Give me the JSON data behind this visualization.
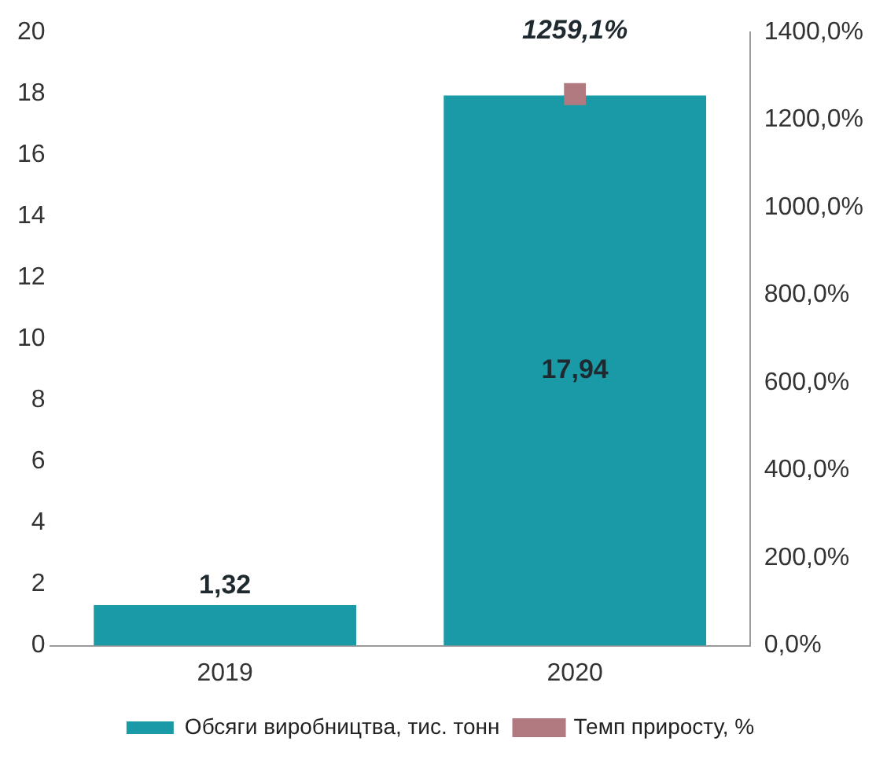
{
  "chart_data": {
    "type": "bar",
    "categories": [
      "2019",
      "2020"
    ],
    "series": [
      {
        "name": "Обсяги виробництва, тис. тонн",
        "color": "#1a9aa6",
        "values": [
          1.32,
          17.94
        ],
        "value_labels": [
          "1,32",
          "17,94"
        ]
      },
      {
        "name": "Темп приросту, %",
        "type": "line",
        "axis": "y2",
        "color": "#b07a80",
        "values": [
          null,
          1259.1
        ],
        "value_labels": [
          null,
          "1259,1%"
        ]
      }
    ],
    "ylim": [
      0,
      20
    ],
    "yticks": [
      0,
      2,
      4,
      6,
      8,
      10,
      12,
      14,
      16,
      18,
      20
    ],
    "y2lim": [
      0,
      1400
    ],
    "y2ticks": [
      {
        "value": 0,
        "label": "0,0%"
      },
      {
        "value": 200,
        "label": "200,0%"
      },
      {
        "value": 400,
        "label": "400,0%"
      },
      {
        "value": 600,
        "label": "600,0%"
      },
      {
        "value": 800,
        "label": "800,0%"
      },
      {
        "value": 1000,
        "label": "1000,0%"
      },
      {
        "value": 1200,
        "label": "1200,0%"
      },
      {
        "value": 1400,
        "label": "1400,0%"
      }
    ],
    "marker": "square",
    "grid": false,
    "legend": "bottom"
  }
}
